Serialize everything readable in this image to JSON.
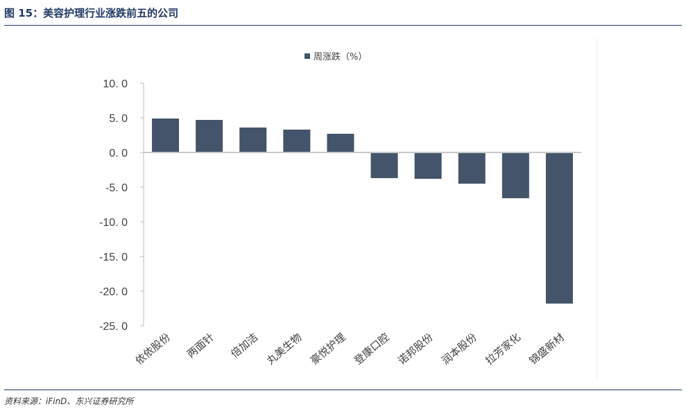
{
  "title": "图 15：美容护理行业涨跌前五的公司",
  "source": "资料来源：iFinD、东兴证券研究所",
  "chart_data": {
    "type": "bar",
    "categories": [
      "依依股份",
      "两面针",
      "倍加洁",
      "丸美生物",
      "豪悦护理",
      "登康口腔",
      "诺邦股份",
      "润本股份",
      "拉芳家化",
      "锦盛新材"
    ],
    "series": [
      {
        "name": "周涨跌（%）",
        "values": [
          4.9,
          4.7,
          3.6,
          3.3,
          2.7,
          -3.7,
          -3.8,
          -4.5,
          -6.6,
          -21.8
        ]
      }
    ],
    "ylim": [
      -25,
      10
    ],
    "yticks": [
      "10.0",
      "5.0",
      "0.0",
      "-5.0",
      "-10.0",
      "-15.0",
      "-20.0",
      "-25.0"
    ],
    "legend": "top",
    "grid": false,
    "color": "#44546a"
  }
}
